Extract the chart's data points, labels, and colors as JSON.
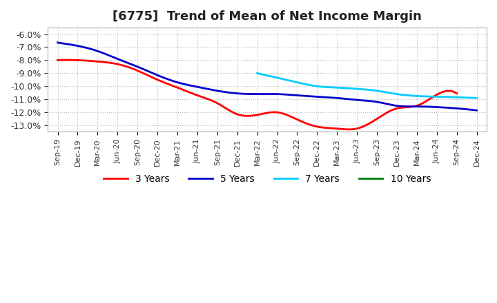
{
  "title": "[6775]  Trend of Mean of Net Income Margin",
  "x_labels": [
    "Sep-19",
    "Dec-19",
    "Mar-20",
    "Jun-20",
    "Sep-20",
    "Dec-20",
    "Mar-21",
    "Jun-21",
    "Sep-21",
    "Dec-21",
    "Mar-22",
    "Jun-22",
    "Sep-22",
    "Dec-22",
    "Mar-23",
    "Jun-23",
    "Sep-23",
    "Dec-23",
    "Mar-24",
    "Jun-24",
    "Sep-24",
    "Dec-24"
  ],
  "ylim": [
    -13.5,
    -5.5
  ],
  "yticks": [
    -13.0,
    -12.0,
    -11.0,
    -10.0,
    -9.0,
    -8.0,
    -7.0,
    -6.0
  ],
  "series": {
    "3 Years": {
      "color": "#ff0000",
      "data_x": [
        0,
        1,
        2,
        3,
        4,
        5,
        6,
        7,
        8,
        9,
        10,
        11,
        12,
        13,
        14,
        15,
        16,
        17,
        18,
        19,
        20
      ],
      "data_y": [
        -8.0,
        -8.0,
        -8.1,
        -8.3,
        -8.8,
        -9.5,
        -10.1,
        -10.7,
        -11.3,
        -12.15,
        -12.2,
        -12.0,
        -12.55,
        -13.1,
        -13.25,
        -13.25,
        -12.5,
        -11.7,
        -11.5,
        -10.65,
        -10.55
      ]
    },
    "5 Years": {
      "color": "#0000cc",
      "data_x": [
        0,
        1,
        2,
        3,
        4,
        5,
        6,
        7,
        8,
        9,
        10,
        11,
        12,
        13,
        14,
        15,
        16,
        17,
        18,
        19,
        20,
        21
      ],
      "data_y": [
        -6.65,
        -6.9,
        -7.3,
        -7.9,
        -8.5,
        -9.15,
        -9.7,
        -10.05,
        -10.35,
        -10.55,
        -10.6,
        -10.6,
        -10.7,
        -10.8,
        -10.9,
        -11.05,
        -11.2,
        -11.5,
        -11.55,
        -11.6,
        -11.7,
        -11.85
      ]
    },
    "7 Years": {
      "color": "#00ccff",
      "data_x": [
        10,
        11,
        12,
        13,
        14,
        15,
        16,
        17,
        18,
        19,
        20,
        21
      ],
      "data_y": [
        -9.0,
        -9.35,
        -9.7,
        -10.0,
        -10.1,
        -10.2,
        -10.35,
        -10.6,
        -10.75,
        -10.8,
        -10.85,
        -10.9
      ]
    },
    "10 Years": {
      "color": "#007700",
      "data_x": [],
      "data_y": []
    }
  },
  "background_color": "#ffffff",
  "grid_color": "#aaaaaa",
  "title_fontsize": 13,
  "legend_fontsize": 10
}
